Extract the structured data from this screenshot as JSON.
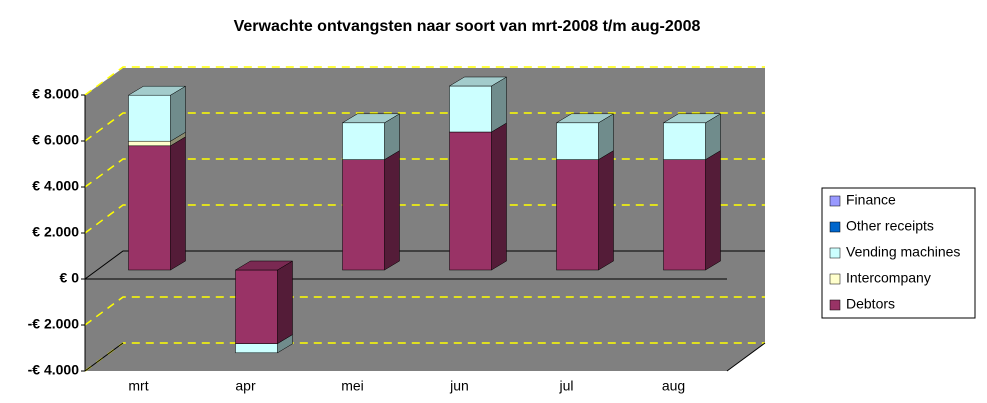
{
  "chart_data": {
    "type": "bar3d_stacked",
    "title": "Verwachte ontvangsten naar soort van mrt-2008 t/m aug-2008",
    "categories": [
      "mrt",
      "apr",
      "mei",
      "jun",
      "jul",
      "aug"
    ],
    "series": [
      {
        "name": "Debtors",
        "color": "#993366",
        "values": [
          5400,
          -3200,
          4800,
          6000,
          4800,
          4800
        ]
      },
      {
        "name": "Intercompany",
        "color": "#FFFFCC",
        "values": [
          200,
          0,
          0,
          0,
          0,
          0
        ]
      },
      {
        "name": "Vending machines",
        "color": "#CCFFFF",
        "values": [
          2000,
          -400,
          1600,
          2000,
          1600,
          1600
        ]
      },
      {
        "name": "Other receipts",
        "color": "#0066CC",
        "values": [
          0,
          0,
          0,
          0,
          0,
          0
        ]
      },
      {
        "name": "Finance",
        "color": "#9999FF",
        "values": [
          0,
          0,
          0,
          0,
          0,
          0
        ]
      }
    ],
    "ylim": [
      -4000,
      8000
    ],
    "yticks": [
      {
        "value": -4000,
        "label": "-€ 4.000"
      },
      {
        "value": -2000,
        "label": "-€ 2.000"
      },
      {
        "value": 0,
        "label": "€ 0"
      },
      {
        "value": 2000,
        "label": "€ 2.000"
      },
      {
        "value": 4000,
        "label": "€ 4.000"
      },
      {
        "value": 6000,
        "label": "€ 6.000"
      },
      {
        "value": 8000,
        "label": "€ 8.000"
      }
    ],
    "grid": true,
    "legend": "right"
  }
}
